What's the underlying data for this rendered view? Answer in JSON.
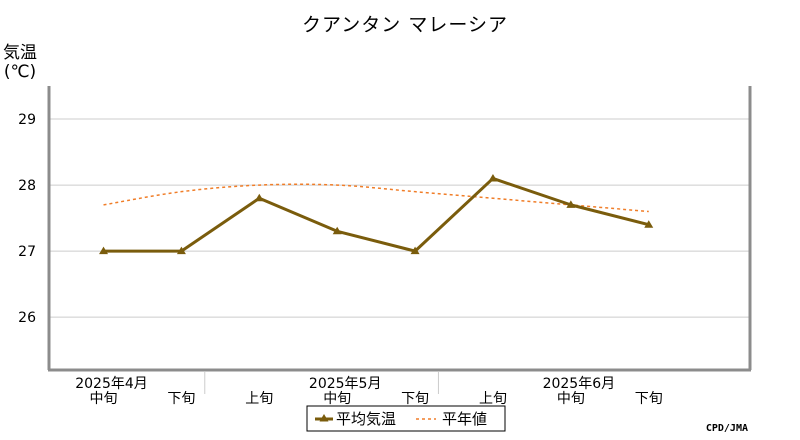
{
  "chart_data": {
    "type": "line",
    "title": "クアンタン マレーシア",
    "ylabel_line1": "気温",
    "ylabel_line2": "(℃)",
    "ylim": [
      25.2,
      29.5
    ],
    "yticks": [
      26,
      27,
      28,
      29
    ],
    "grid": true,
    "x_periods": [
      "中旬",
      "下旬",
      "上旬",
      "中旬",
      "下旬",
      "上旬",
      "中旬",
      "下旬"
    ],
    "x_months": [
      {
        "label": "2025年4月",
        "index": 0
      },
      {
        "label": "2025年5月",
        "index": 3
      },
      {
        "label": "2025年6月",
        "index": 6
      }
    ],
    "series": [
      {
        "name": "平均気温",
        "style": "solid-triangle",
        "color": "#7a5c0c",
        "values": [
          27.0,
          27.0,
          27.8,
          27.3,
          27.0,
          28.1,
          27.7,
          27.4
        ]
      },
      {
        "name": "平年値",
        "style": "dashed",
        "color": "#f07d28",
        "values": [
          27.7,
          27.9,
          28.0,
          28.0,
          27.9,
          27.8,
          27.7,
          27.6
        ]
      }
    ],
    "legend_position": "bottom-center",
    "credit": "CPD/JMA"
  }
}
